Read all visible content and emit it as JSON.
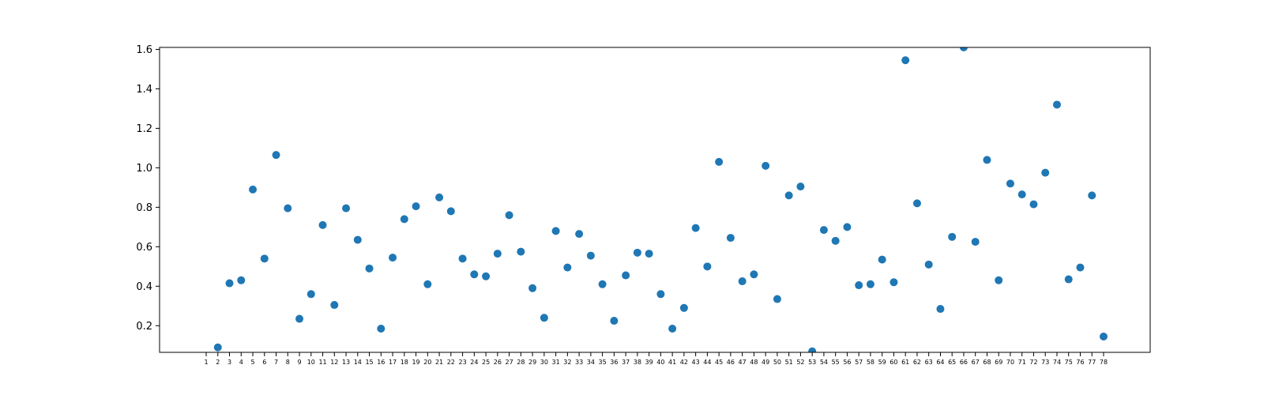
{
  "chart_data": {
    "type": "scatter",
    "title": "",
    "xlabel": "",
    "ylabel": "",
    "x": [
      1,
      2,
      3,
      4,
      5,
      6,
      7,
      8,
      9,
      10,
      11,
      12,
      13,
      14,
      15,
      16,
      17,
      18,
      19,
      20,
      21,
      22,
      23,
      24,
      25,
      26,
      27,
      28,
      29,
      30,
      31,
      32,
      33,
      34,
      35,
      36,
      37,
      38,
      39,
      40,
      41,
      42,
      43,
      44,
      45,
      46,
      47,
      48,
      49,
      50,
      51,
      52,
      53,
      54,
      55,
      56,
      57,
      58,
      59,
      60,
      61,
      62,
      63,
      64,
      65,
      66,
      67,
      68,
      69,
      70,
      71,
      72,
      73,
      74,
      75,
      76,
      77,
      78
    ],
    "series": [
      {
        "color": "#1f77b4",
        "values": [
          null,
          0.09,
          0.415,
          0.43,
          0.89,
          0.54,
          1.065,
          0.795,
          0.235,
          0.36,
          0.71,
          0.305,
          0.795,
          0.635,
          0.49,
          0.185,
          0.545,
          0.74,
          0.805,
          0.41,
          0.85,
          0.78,
          0.54,
          0.46,
          0.45,
          0.565,
          0.76,
          0.575,
          0.39,
          0.24,
          0.68,
          0.495,
          0.665,
          0.555,
          0.41,
          0.225,
          0.455,
          0.57,
          0.565,
          0.36,
          0.185,
          0.29,
          0.695,
          0.5,
          1.03,
          0.645,
          0.425,
          0.46,
          1.01,
          0.335,
          0.86,
          0.905,
          0.07,
          0.685,
          0.63,
          0.7,
          0.405,
          0.41,
          0.535,
          0.42,
          1.545,
          0.82,
          0.51,
          0.285,
          0.65,
          1.61,
          0.625,
          1.04,
          0.43,
          0.92,
          0.865,
          0.815,
          0.975,
          1.32,
          0.435,
          0.495,
          0.86,
          0.145
        ]
      }
    ],
    "ylim": [
      0.065,
      1.61
    ],
    "xlim": [
      -3,
      82
    ],
    "yticks": [
      0.2,
      0.4,
      0.6,
      0.8,
      1.0,
      1.2,
      1.4,
      1.6
    ],
    "ytick_labels": [
      "0.2",
      "0.4",
      "0.6",
      "0.8",
      "1.0",
      "1.2",
      "1.4",
      "1.6"
    ],
    "xtick_labels": [
      "1",
      "2",
      "3",
      "4",
      "5",
      "6",
      "7",
      "8",
      "9",
      "10",
      "11",
      "12",
      "13",
      "14",
      "15",
      "16",
      "17",
      "18",
      "19",
      "20",
      "21",
      "22",
      "23",
      "24",
      "25",
      "26",
      "27",
      "28",
      "29",
      "30",
      "31",
      "32",
      "33",
      "34",
      "35",
      "36",
      "37",
      "38",
      "39",
      "40",
      "41",
      "42",
      "43",
      "44",
      "45",
      "46",
      "47",
      "48",
      "49",
      "50",
      "51",
      "52",
      "53",
      "54",
      "55",
      "56",
      "57",
      "58",
      "59",
      "60",
      "61",
      "62",
      "63",
      "64",
      "65",
      "66",
      "67",
      "68",
      "69",
      "70",
      "71",
      "72",
      "73",
      "74",
      "75",
      "76",
      "77",
      "78"
    ],
    "grid": false,
    "legend": "none"
  }
}
